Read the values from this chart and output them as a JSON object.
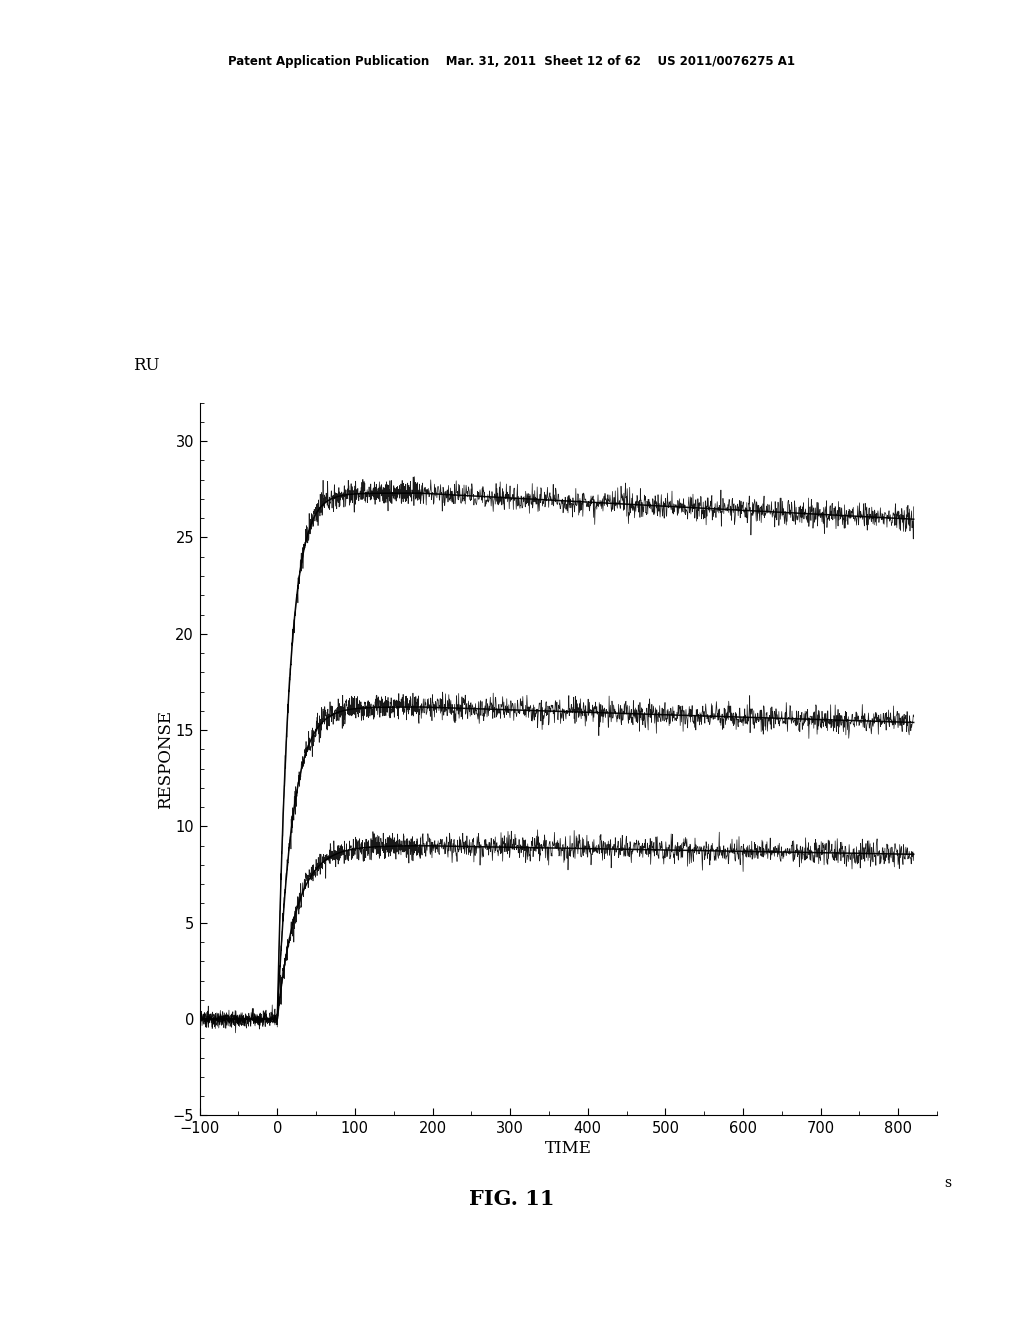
{
  "title_header": "Patent Application Publication    Mar. 31, 2011  Sheet 12 of 62    US 2011/0076275 A1",
  "fig_label": "FIG. 11",
  "xlabel": "TIME",
  "xlabel_unit": "s",
  "ylabel": "RESPONSE",
  "ylabel_top_label": "RU",
  "xlim": [
    -100,
    850
  ],
  "ylim": [
    -5,
    32
  ],
  "xticks": [
    -100,
    0,
    100,
    200,
    300,
    400,
    500,
    600,
    700,
    800
  ],
  "yticks": [
    -5,
    0,
    5,
    10,
    15,
    20,
    25,
    30
  ],
  "curves": [
    {
      "plateau": 27.3,
      "ka_scale": 0.065,
      "color": "#000000"
    },
    {
      "plateau": 16.2,
      "ka_scale": 0.052,
      "color": "#000000"
    },
    {
      "plateau": 9.0,
      "ka_scale": 0.04,
      "color": "#000000"
    }
  ],
  "noise_amplitude": 0.32,
  "background_color": "#ffffff",
  "pre_time_start": -100,
  "pre_time_end": 0,
  "association_end": 185,
  "plot_end": 820,
  "kd": 8e-05
}
